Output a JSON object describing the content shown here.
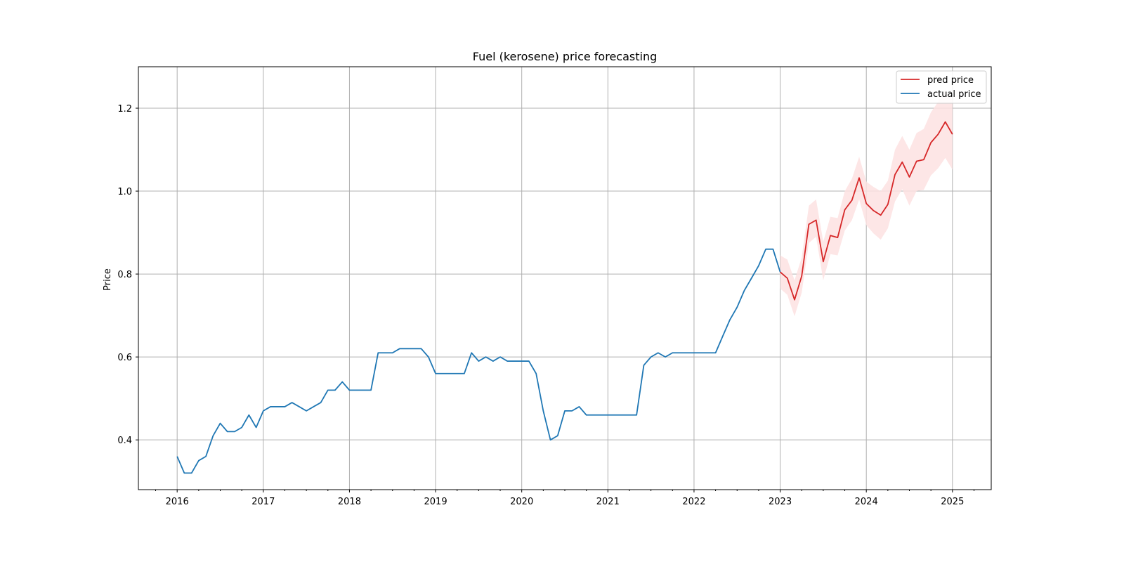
{
  "chart_data": {
    "type": "line",
    "title": "Fuel (kerosene) price forecasting",
    "xlabel": "",
    "ylabel": "Price",
    "xlim": [
      2015.55,
      2025.45
    ],
    "ylim": [
      0.28,
      1.3
    ],
    "x_ticks": [
      2016,
      2017,
      2018,
      2019,
      2020,
      2021,
      2022,
      2023,
      2024,
      2025
    ],
    "x_tick_labels": [
      "2016",
      "2017",
      "2018",
      "2019",
      "2020",
      "2021",
      "2022",
      "2023",
      "2024",
      "2025"
    ],
    "y_ticks": [
      0.4,
      0.6,
      0.8,
      1.0,
      1.2
    ],
    "y_tick_labels": [
      "0.4",
      "0.6",
      "0.8",
      "1.0",
      "1.2"
    ],
    "grid": true,
    "legend_position": "top-right",
    "colors": {
      "pred": "#d62728",
      "actual": "#1f77b4",
      "band": "#fde2e2"
    },
    "legend": [
      {
        "label": "pred price",
        "color": "#d62728"
      },
      {
        "label": "actual price",
        "color": "#1f77b4"
      }
    ],
    "series": [
      {
        "name": "actual price",
        "color": "#1f77b4",
        "x": [
          2016.0,
          2016.083,
          2016.167,
          2016.25,
          2016.333,
          2016.417,
          2016.5,
          2016.583,
          2016.667,
          2016.75,
          2016.833,
          2016.917,
          2017.0,
          2017.083,
          2017.167,
          2017.25,
          2017.333,
          2017.417,
          2017.5,
          2017.583,
          2017.667,
          2017.75,
          2017.833,
          2017.917,
          2018.0,
          2018.083,
          2018.167,
          2018.25,
          2018.333,
          2018.417,
          2018.5,
          2018.583,
          2018.667,
          2018.75,
          2018.833,
          2018.917,
          2019.0,
          2019.083,
          2019.167,
          2019.25,
          2019.333,
          2019.417,
          2019.5,
          2019.583,
          2019.667,
          2019.75,
          2019.833,
          2019.917,
          2020.0,
          2020.083,
          2020.167,
          2020.25,
          2020.333,
          2020.417,
          2020.5,
          2020.583,
          2020.667,
          2020.75,
          2020.833,
          2020.917,
          2021.0,
          2021.083,
          2021.167,
          2021.25,
          2021.333,
          2021.417,
          2021.5,
          2021.583,
          2021.667,
          2021.75,
          2021.833,
          2021.917,
          2022.0,
          2022.083,
          2022.167,
          2022.25,
          2022.333,
          2022.417,
          2022.5,
          2022.583,
          2022.667,
          2022.75,
          2022.833,
          2022.917,
          2023.0
        ],
        "values": [
          0.36,
          0.32,
          0.32,
          0.35,
          0.36,
          0.41,
          0.44,
          0.42,
          0.42,
          0.43,
          0.46,
          0.43,
          0.47,
          0.48,
          0.48,
          0.48,
          0.49,
          0.48,
          0.47,
          0.48,
          0.49,
          0.52,
          0.52,
          0.54,
          0.52,
          0.52,
          0.52,
          0.52,
          0.61,
          0.61,
          0.61,
          0.62,
          0.62,
          0.62,
          0.62,
          0.6,
          0.56,
          0.56,
          0.56,
          0.56,
          0.56,
          0.61,
          0.59,
          0.6,
          0.59,
          0.6,
          0.59,
          0.59,
          0.59,
          0.59,
          0.56,
          0.47,
          0.4,
          0.41,
          0.47,
          0.47,
          0.48,
          0.46,
          0.46,
          0.46,
          0.46,
          0.46,
          0.46,
          0.46,
          0.46,
          0.58,
          0.6,
          0.61,
          0.6,
          0.61,
          0.61,
          0.61,
          0.61,
          0.61,
          0.61,
          0.61,
          0.65,
          0.69,
          0.72,
          0.76,
          0.79,
          0.82,
          0.86,
          0.86,
          0.805
        ]
      },
      {
        "name": "pred price",
        "color": "#d62728",
        "x": [
          2023.0,
          2023.083,
          2023.167,
          2023.25,
          2023.333,
          2023.417,
          2023.5,
          2023.583,
          2023.667,
          2023.75,
          2023.833,
          2023.917,
          2024.0,
          2024.083,
          2024.167,
          2024.25,
          2024.333,
          2024.417,
          2024.5,
          2024.583,
          2024.667,
          2024.75,
          2024.833,
          2024.917,
          2025.0
        ],
        "values": [
          0.805,
          0.79,
          0.738,
          0.795,
          0.92,
          0.93,
          0.83,
          0.893,
          0.888,
          0.955,
          0.978,
          1.032,
          0.97,
          0.953,
          0.942,
          0.968,
          1.04,
          1.07,
          1.034,
          1.072,
          1.076,
          1.117,
          1.137,
          1.167,
          1.137
        ],
        "lower": [
          0.765,
          0.75,
          0.698,
          0.755,
          0.875,
          0.89,
          0.785,
          0.848,
          0.845,
          0.905,
          0.93,
          0.98,
          0.918,
          0.898,
          0.883,
          0.91,
          0.975,
          1.005,
          0.965,
          1.0,
          1.003,
          1.038,
          1.055,
          1.08,
          1.052
        ],
        "upper": [
          0.845,
          0.835,
          0.785,
          0.84,
          0.965,
          0.98,
          0.878,
          0.938,
          0.935,
          1.0,
          1.03,
          1.083,
          1.023,
          1.01,
          1.0,
          1.025,
          1.1,
          1.133,
          1.1,
          1.14,
          1.15,
          1.19,
          1.215,
          1.245,
          1.22
        ]
      }
    ]
  }
}
